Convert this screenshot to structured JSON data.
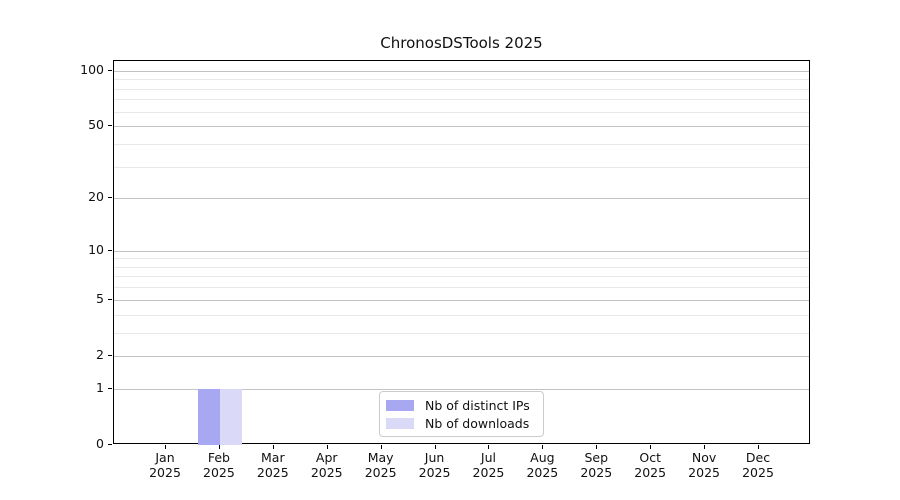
{
  "chart_data": {
    "type": "bar",
    "title": "ChronosDSTools 2025",
    "categories": [
      {
        "month": "Jan",
        "year": "2025"
      },
      {
        "month": "Feb",
        "year": "2025"
      },
      {
        "month": "Mar",
        "year": "2025"
      },
      {
        "month": "Apr",
        "year": "2025"
      },
      {
        "month": "May",
        "year": "2025"
      },
      {
        "month": "Jun",
        "year": "2025"
      },
      {
        "month": "Jul",
        "year": "2025"
      },
      {
        "month": "Aug",
        "year": "2025"
      },
      {
        "month": "Sep",
        "year": "2025"
      },
      {
        "month": "Oct",
        "year": "2025"
      },
      {
        "month": "Nov",
        "year": "2025"
      },
      {
        "month": "Dec",
        "year": "2025"
      }
    ],
    "series": [
      {
        "name": "Nb of distinct IPs",
        "color": "#a8a8f2",
        "values": [
          0,
          1,
          0,
          0,
          0,
          0,
          0,
          0,
          0,
          0,
          0,
          0
        ]
      },
      {
        "name": "Nb of downloads",
        "color": "#dadaf8",
        "values": [
          0,
          1,
          0,
          0,
          0,
          0,
          0,
          0,
          0,
          0,
          0,
          0
        ]
      }
    ],
    "y_scale": "log10(1+x)",
    "y_major_ticks": [
      0,
      1,
      2,
      5,
      10,
      20,
      50,
      100
    ],
    "y_minor_ticks": [
      3,
      4,
      6,
      7,
      8,
      9,
      30,
      40,
      60,
      70,
      80,
      90
    ],
    "ylim": [
      0,
      113
    ],
    "xlabel": "",
    "ylabel": "",
    "grid": "horizontal",
    "legend_position": "lower-center-inside"
  }
}
